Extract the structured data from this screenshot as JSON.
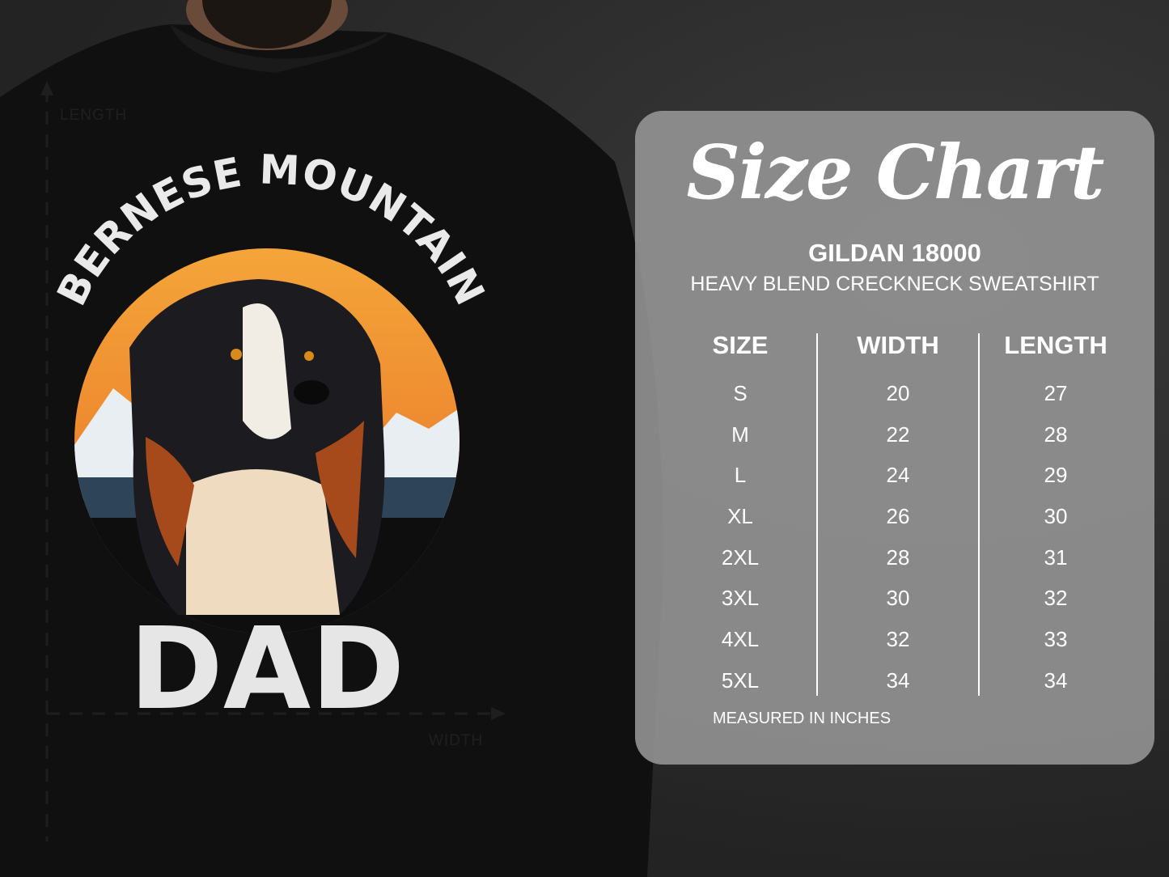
{
  "shirt": {
    "print_top": "BERNESE MOUNTAIN",
    "print_bottom": "DAD",
    "length_label": "LENGTH",
    "width_label": "WIDTH"
  },
  "chart": {
    "title": "Size Chart",
    "model": "GILDAN 18000",
    "description": "HEAVY BLEND CRECKNECK SWEATSHIRT",
    "headers": [
      "SIZE",
      "WIDTH",
      "LENGTH"
    ],
    "sizes": [
      "S",
      "M",
      "L",
      "XL",
      "2XL",
      "3XL",
      "4XL",
      "5XL"
    ],
    "widths": [
      "20",
      "22",
      "24",
      "26",
      "28",
      "30",
      "32",
      "34"
    ],
    "lengths": [
      "27",
      "28",
      "29",
      "30",
      "31",
      "32",
      "33",
      "34"
    ],
    "note": "MEASURED IN INCHES"
  },
  "colors": {
    "panel": "#969696",
    "shirt": "#111111",
    "sun_top": "#f0a030",
    "sun_bottom": "#e04a3a"
  }
}
